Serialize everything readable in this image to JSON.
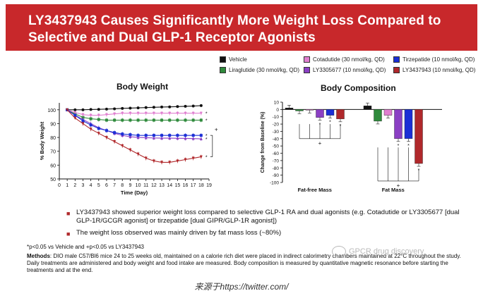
{
  "title": "LY3437943 Causes Significantly More Weight Loss Compared to Selective and Dual GLP-1 Receptor Agonists",
  "legend": [
    {
      "label": "Vehicle",
      "color": "#111111"
    },
    {
      "label": "Liraglutide (30 nmol/kg, QD)",
      "color": "#2f8a3c"
    },
    {
      "label": "Cotadutide (30 nmol/kg, QD)",
      "color": "#e07fd0"
    },
    {
      "label": "LY3305677 (10 nmol/kg, QD)",
      "color": "#8b3fc4"
    },
    {
      "label": "Tirzepatide (10 nmol/kg, QD)",
      "color": "#1b2fd6"
    },
    {
      "label": "LY3437943 (10 nmol/kg, QD)",
      "color": "#b0282b"
    }
  ],
  "panels": {
    "left_title": "Body Weight",
    "right_title": "Body Composition"
  },
  "chart_data": [
    {
      "type": "line",
      "title": "Body Weight",
      "xlabel": "Time (Day)",
      "ylabel": "% Body Weight",
      "xlim": [
        0,
        19
      ],
      "ylim": [
        50,
        105
      ],
      "xticks": [
        0,
        1,
        2,
        3,
        4,
        5,
        6,
        7,
        8,
        9,
        10,
        11,
        12,
        13,
        14,
        15,
        16,
        17,
        18,
        19
      ],
      "yticks": [
        50,
        60,
        70,
        80,
        90,
        100
      ],
      "x": [
        1,
        2,
        3,
        4,
        5,
        6,
        7,
        8,
        9,
        10,
        11,
        12,
        13,
        14,
        15,
        16,
        17,
        18
      ],
      "series": [
        {
          "name": "Vehicle",
          "color": "#111111",
          "marker": "circle",
          "values": [
            100,
            100,
            100,
            100.2,
            100.3,
            100.5,
            100.7,
            101,
            101.2,
            101.4,
            101.6,
            101.8,
            102,
            102.1,
            102.3,
            102.5,
            102.7,
            103
          ]
        },
        {
          "name": "Liraglutide (30 nmol/kg, QD)",
          "color": "#2f8a3c",
          "marker": "square",
          "values": [
            100,
            97,
            94.5,
            93.5,
            93,
            92.5,
            92.5,
            92.5,
            92.5,
            92.5,
            92.5,
            92.5,
            92.5,
            92.5,
            92.5,
            92.5,
            92.5,
            92.5
          ]
        },
        {
          "name": "Cotadutide (30 nmol/kg, QD)",
          "color": "#e07fd0",
          "marker": "triangle-down",
          "values": [
            100,
            98,
            96.5,
            96,
            96,
            96.5,
            97,
            97.5,
            97.5,
            97.5,
            97.5,
            97.5,
            97.5,
            97.5,
            97.5,
            97.5,
            97.5,
            97.5
          ]
        },
        {
          "name": "LY3305677 (10 nmol/kg, QD)",
          "color": "#8b3fc4",
          "marker": "triangle-up",
          "values": [
            100,
            96,
            93,
            90,
            87,
            85,
            83,
            81.5,
            80.5,
            80,
            79.8,
            79.6,
            79.5,
            79.5,
            79.4,
            79.3,
            79.2,
            79
          ]
        },
        {
          "name": "Tirzepatide (10 nmol/kg, QD)",
          "color": "#1b2fd6",
          "marker": "square",
          "values": [
            100,
            96,
            92,
            89,
            86.5,
            85,
            83.5,
            82.5,
            82,
            81.5,
            81.5,
            81.5,
            81.5,
            81.5,
            81.5,
            81.5,
            81.5,
            81.5
          ]
        },
        {
          "name": "LY3437943 (10 nmol/kg, QD)",
          "color": "#b0282b",
          "marker": "triangle-down",
          "values": [
            100,
            94,
            90,
            86,
            83,
            80,
            77,
            74,
            71,
            68,
            65,
            63,
            62,
            62,
            63,
            64,
            65,
            66
          ]
        }
      ],
      "annotations": [
        "*",
        "*",
        "*",
        "*",
        "*",
        "+"
      ]
    },
    {
      "type": "bar",
      "title": "Body Composition",
      "ylabel": "Change from Baseline (%)",
      "ylim": [
        -100,
        10
      ],
      "yticks": [
        10,
        0,
        -10,
        -20,
        -30,
        -40,
        -50,
        -60,
        -70,
        -80,
        -90,
        -100
      ],
      "categories": [
        "Fat-free Mass",
        "Fat Mass"
      ],
      "series": [
        {
          "name": "Vehicle",
          "color": "#111111",
          "values": [
            2,
            5
          ]
        },
        {
          "name": "Liraglutide (30 nmol/kg, QD)",
          "color": "#2f8a3c",
          "values": [
            -2,
            -16
          ]
        },
        {
          "name": "Cotadutide (30 nmol/kg, QD)",
          "color": "#e07fd0",
          "values": [
            -1,
            -8
          ]
        },
        {
          "name": "LY3305677 (10 nmol/kg, QD)",
          "color": "#8b3fc4",
          "values": [
            -11,
            -40
          ]
        },
        {
          "name": "Tirzepatide (10 nmol/kg, QD)",
          "color": "#1b2fd6",
          "values": [
            -8,
            -40
          ]
        },
        {
          "name": "LY3437943 (10 nmol/kg, QD)",
          "color": "#b0282b",
          "values": [
            -13,
            -74
          ]
        }
      ],
      "significance": {
        "fat_free": [
          "*",
          "*",
          "*",
          "+"
        ],
        "fat": [
          "*",
          "*",
          "*",
          "+"
        ]
      }
    }
  ],
  "bullets": [
    "LY3437943 showed superior weight loss compared to selective GLP-1 RA and dual agonists (e.g. Cotadutide or LY3305677 [dual GLP-1R/GCGR agonist] or tirzepatide [dual GIPR/GLP-1R agonist])",
    "The weight loss observed was mainly driven by fat mass loss (~80%)"
  ],
  "footnote": "*p<0.05 vs Vehicle and +p<0.05 vs LY3437943",
  "methods": {
    "label": "Methods",
    "text": ": DIO male C57/Bl6 mice 24 to 25 weeks old, maintained on a calorie rich diet were placed in indirect calorimetry chambers maintained at 22°C throughout the study. Daily treatments are administered and body weight and food intake are measured. Body composition is measured by quantitative magnetic resonance before starting the treatments and at the end."
  },
  "watermark": "GPCR drug discovery",
  "caption": "来源于https://twitter.com/"
}
